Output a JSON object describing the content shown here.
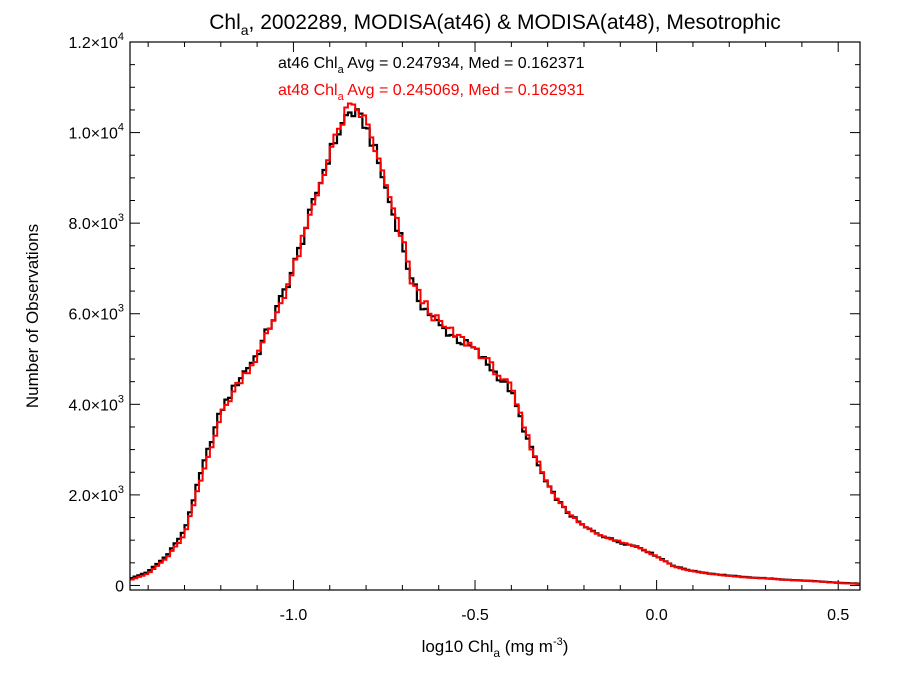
{
  "chart_data": {
    "type": "line",
    "title": {
      "part1": "Chl",
      "sub": "a",
      "part2": ", 2002289, MODISA(at46) & MODISA(at48), Mesotrophic"
    },
    "xlabel": {
      "part1": "log10 Chl",
      "sub": "a",
      "part2": " (mg m",
      "sup": "-3",
      "part3": ")"
    },
    "ylabel": "Number of Observations",
    "xlim": [
      -1.45,
      0.56
    ],
    "ylim": [
      -100,
      12000
    ],
    "x_ticks": [
      {
        "value": -1.0,
        "label": "-1.0"
      },
      {
        "value": -0.5,
        "label": "-0.5"
      },
      {
        "value": 0.0,
        "label": "0.0"
      },
      {
        "value": 0.5,
        "label": "0.5"
      }
    ],
    "y_ticks": [
      {
        "value": 0,
        "mant": "0",
        "exp": ""
      },
      {
        "value": 2000,
        "mant": "2.0×10",
        "exp": "3"
      },
      {
        "value": 4000,
        "mant": "4.0×10",
        "exp": "3"
      },
      {
        "value": 6000,
        "mant": "6.0×10",
        "exp": "3"
      },
      {
        "value": 8000,
        "mant": "8.0×10",
        "exp": "3"
      },
      {
        "value": 10000,
        "mant": "1.0×10",
        "exp": "4"
      },
      {
        "value": 12000,
        "mant": "1.2×10",
        "exp": "4"
      }
    ],
    "annotations": [
      {
        "prefix": "at46 Chl",
        "sub": "a",
        "suffix": " Avg = 0.247934, Med = 0.162371",
        "color": "#000000"
      },
      {
        "prefix": "at48 Chl",
        "sub": "a",
        "suffix": " Avg = 0.245069, Med = 0.162931",
        "color": "#ff0000"
      }
    ],
    "grid": false,
    "series": [
      {
        "color": "#000000",
        "x": [
          -1.45,
          -1.4,
          -1.35,
          -1.3,
          -1.25,
          -1.2,
          -1.15,
          -1.1,
          -1.05,
          -1.0,
          -0.95,
          -0.9,
          -0.875,
          -0.85,
          -0.825,
          -0.8,
          -0.775,
          -0.75,
          -0.725,
          -0.7,
          -0.675,
          -0.65,
          -0.6,
          -0.55,
          -0.5,
          -0.45,
          -0.4,
          -0.35,
          -0.3,
          -0.25,
          -0.2,
          -0.15,
          -0.1,
          -0.05,
          0.0,
          0.05,
          0.1,
          0.15,
          0.2,
          0.25,
          0.3,
          0.35,
          0.4,
          0.45,
          0.5,
          0.56
        ],
        "y": [
          150,
          300,
          650,
          1200,
          2600,
          3850,
          4550,
          5100,
          6000,
          7000,
          8300,
          9550,
          10000,
          10450,
          10400,
          10150,
          9600,
          8900,
          8200,
          7600,
          6700,
          6250,
          5750,
          5450,
          5200,
          4750,
          4300,
          3100,
          2200,
          1650,
          1300,
          1100,
          950,
          850,
          650,
          420,
          320,
          260,
          220,
          180,
          160,
          130,
          110,
          90,
          60,
          40
        ]
      },
      {
        "color": "#ff0000",
        "x": [
          -1.45,
          -1.4,
          -1.35,
          -1.3,
          -1.25,
          -1.2,
          -1.15,
          -1.1,
          -1.05,
          -1.0,
          -0.95,
          -0.9,
          -0.875,
          -0.85,
          -0.825,
          -0.8,
          -0.775,
          -0.75,
          -0.725,
          -0.7,
          -0.675,
          -0.65,
          -0.6,
          -0.55,
          -0.5,
          -0.45,
          -0.4,
          -0.35,
          -0.3,
          -0.25,
          -0.2,
          -0.15,
          -0.1,
          -0.05,
          0.0,
          0.05,
          0.1,
          0.15,
          0.2,
          0.25,
          0.3,
          0.35,
          0.4,
          0.45,
          0.5,
          0.56
        ],
        "y": [
          120,
          260,
          600,
          1100,
          2450,
          3750,
          4500,
          5050,
          5950,
          6950,
          8250,
          9550,
          10050,
          10550,
          10500,
          10250,
          9650,
          8950,
          8250,
          7650,
          6750,
          6350,
          5800,
          5500,
          5250,
          4800,
          4350,
          3150,
          2250,
          1650,
          1300,
          1100,
          970,
          850,
          640,
          410,
          310,
          250,
          210,
          175,
          155,
          125,
          105,
          85,
          55,
          35
        ]
      }
    ]
  }
}
